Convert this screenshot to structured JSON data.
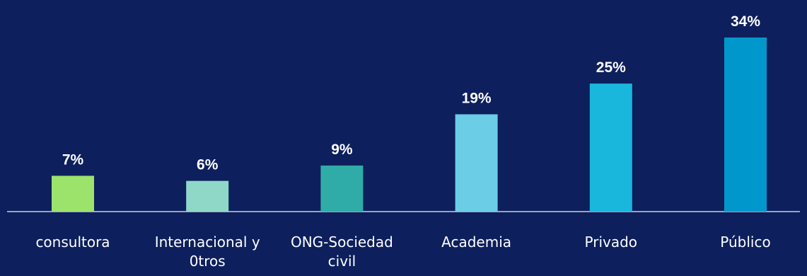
{
  "chart_data": {
    "type": "bar",
    "categories": [
      "consultora",
      "Internacional y 0tros",
      "ONG-Sociedad civil",
      "Academia",
      "Privado",
      "Público"
    ],
    "category_lines": [
      [
        "consultora"
      ],
      [
        "Internacional y",
        "0tros"
      ],
      [
        "ONG-Sociedad",
        "civil"
      ],
      [
        "Academia"
      ],
      [
        "Privado"
      ],
      [
        "Público"
      ]
    ],
    "values": [
      7,
      6,
      9,
      19,
      25,
      34
    ],
    "value_labels": [
      "7%",
      "6%",
      "9%",
      "19%",
      "25%",
      "34%"
    ],
    "colors": [
      "#9be36b",
      "#8fd8c8",
      "#2faca8",
      "#6bcde6",
      "#1ab7dd",
      "#0098cc"
    ],
    "ylim": [
      0,
      34
    ],
    "title": "",
    "xlabel": "",
    "ylabel": "",
    "grid": false,
    "legend": "none"
  }
}
